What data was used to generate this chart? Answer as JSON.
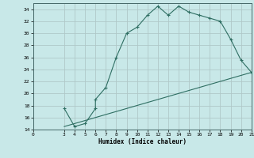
{
  "xlabel": "Humidex (Indice chaleur)",
  "background_color": "#c8e8e8",
  "grid_color": "#b0c8c8",
  "line_color": "#2e6e62",
  "xlim": [
    0,
    21
  ],
  "ylim": [
    14,
    35
  ],
  "xticks": [
    0,
    3,
    4,
    5,
    6,
    7,
    8,
    9,
    10,
    11,
    12,
    13,
    14,
    15,
    16,
    17,
    18,
    19,
    20,
    21
  ],
  "yticks": [
    14,
    16,
    18,
    20,
    22,
    24,
    26,
    28,
    30,
    32,
    34
  ],
  "line1_x": [
    3,
    4,
    5,
    6,
    6,
    7,
    8,
    9,
    10,
    11,
    12,
    13,
    14,
    15,
    16,
    17,
    18,
    19,
    20,
    21
  ],
  "line1_y": [
    17.5,
    14.5,
    15.0,
    17.5,
    19.0,
    21.0,
    26.0,
    30.0,
    31.0,
    33.0,
    34.5,
    33.0,
    34.5,
    33.5,
    33.0,
    32.5,
    32.0,
    29.0,
    25.5,
    23.5
  ],
  "line2_x": [
    3,
    4,
    5,
    6,
    7,
    8,
    9,
    10,
    11,
    12,
    13,
    14,
    15,
    16,
    17,
    18,
    19,
    20,
    21
  ],
  "line2_y": [
    14.5,
    15.0,
    15.5,
    16.0,
    16.5,
    17.0,
    17.5,
    18.0,
    18.5,
    19.0,
    19.5,
    20.0,
    20.5,
    21.0,
    21.5,
    22.0,
    22.5,
    23.0,
    23.5
  ]
}
